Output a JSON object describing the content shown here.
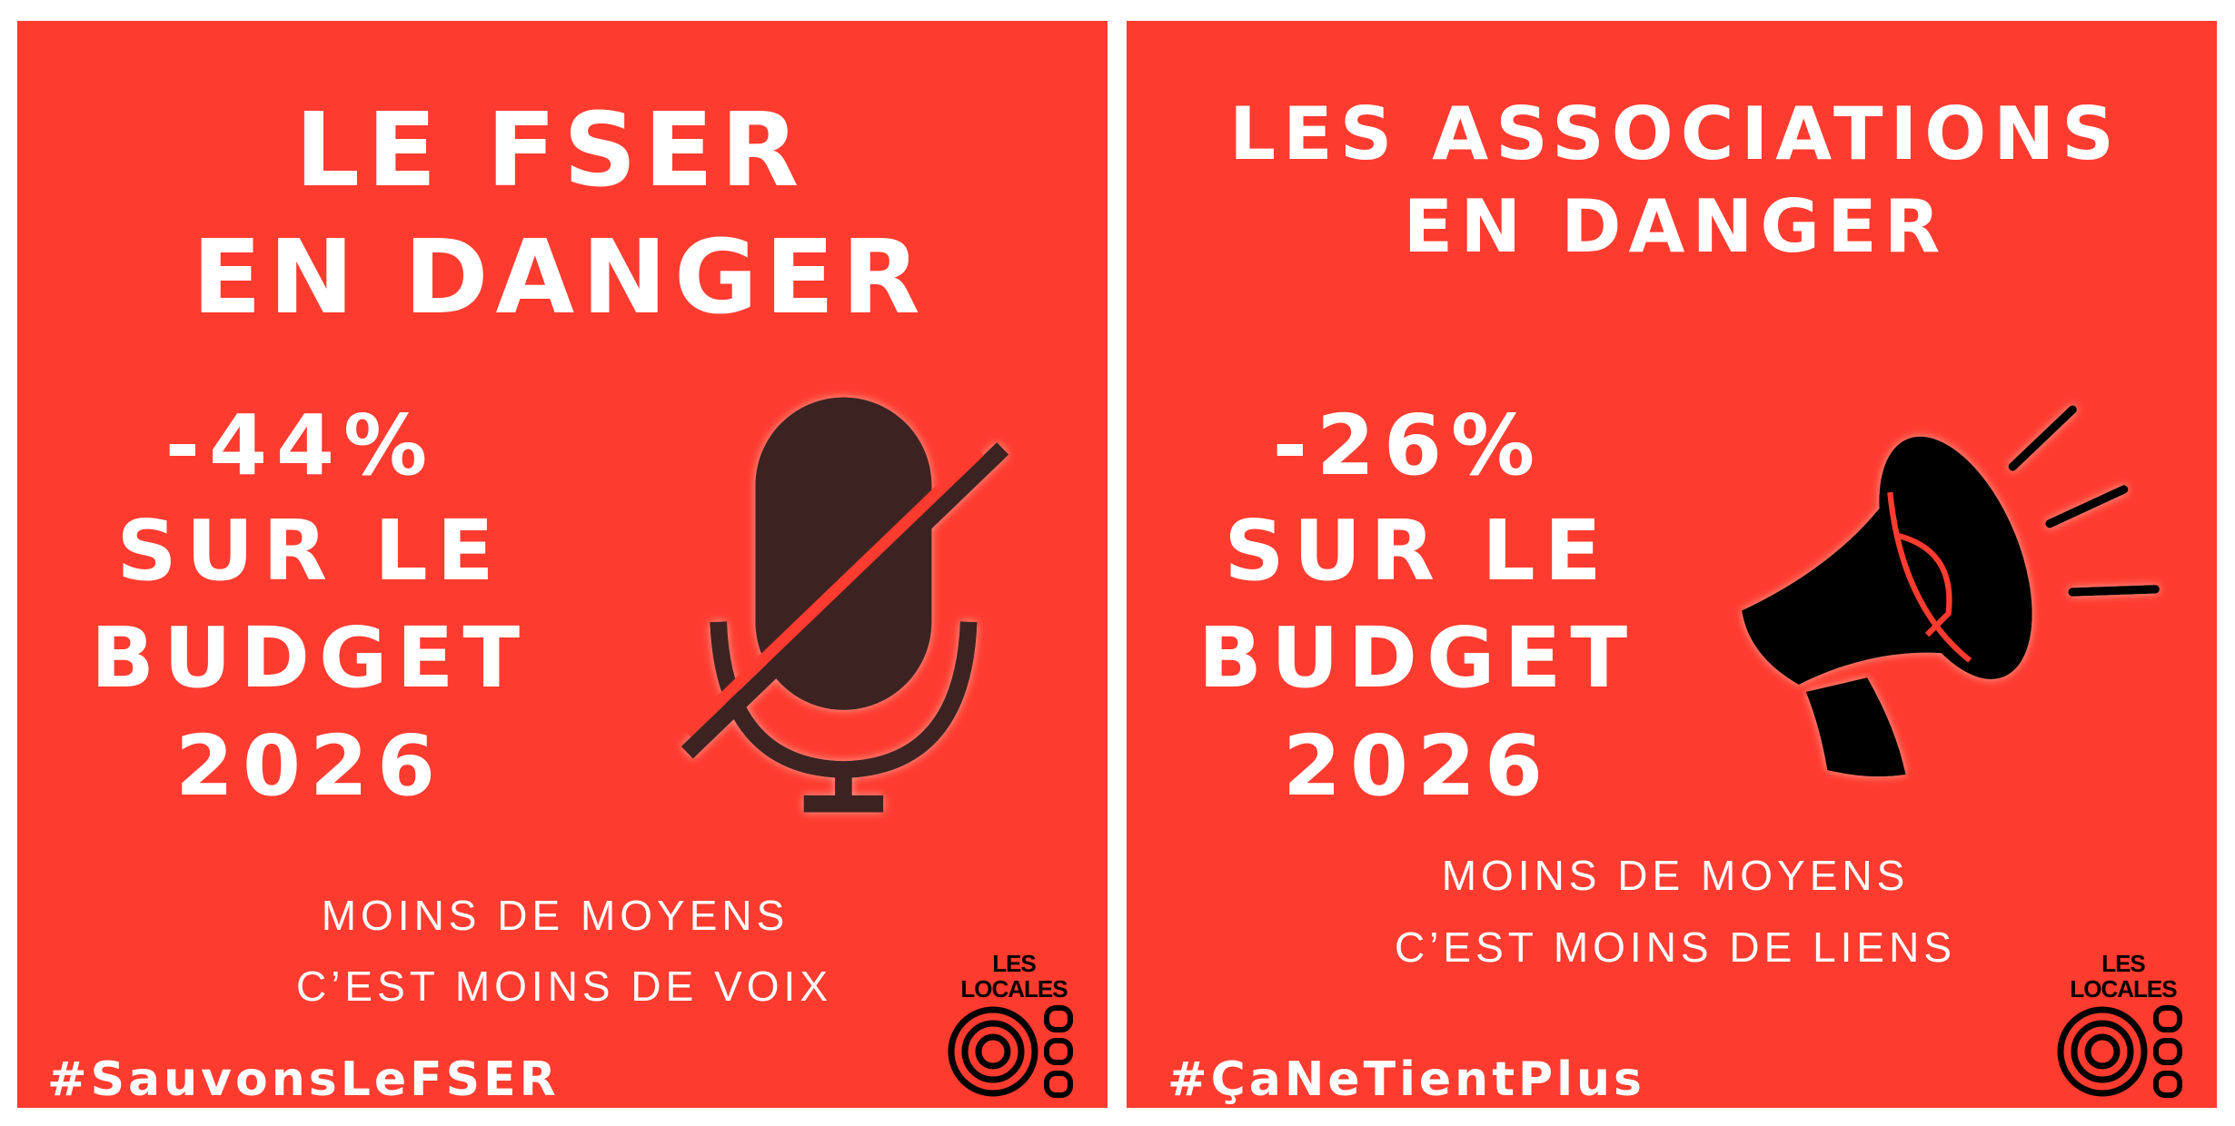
{
  "colors": {
    "background": "#fe3b2f",
    "text": "#ffffff",
    "mic": "#3d2323",
    "megaphone": "#000000"
  },
  "left": {
    "title_lines": [
      "LE FSER",
      "EN DANGER"
    ],
    "stat_lines": [
      "-44%",
      "SUR LE",
      "BUDGET",
      "2026"
    ],
    "icon": "muted-microphone-icon",
    "sub_lines": [
      "MOINS DE MOYENS",
      "C’EST MOINS DE VOIX"
    ],
    "hashtag": "#SauvonsLeFSER",
    "logo": {
      "line1": "LES",
      "line2": "LOCALES"
    }
  },
  "right": {
    "title_lines": [
      "LES ASSOCIATIONS",
      "EN DANGER"
    ],
    "stat_lines": [
      "-26%",
      "SUR LE",
      "BUDGET",
      "2026"
    ],
    "icon": "megaphone-icon",
    "sub_lines": [
      "MOINS DE MOYENS",
      "C’EST MOINS DE LIENS"
    ],
    "hashtag": "#ÇaNeTientPlus",
    "logo": {
      "line1": "LES",
      "line2": "LOCALES"
    }
  }
}
